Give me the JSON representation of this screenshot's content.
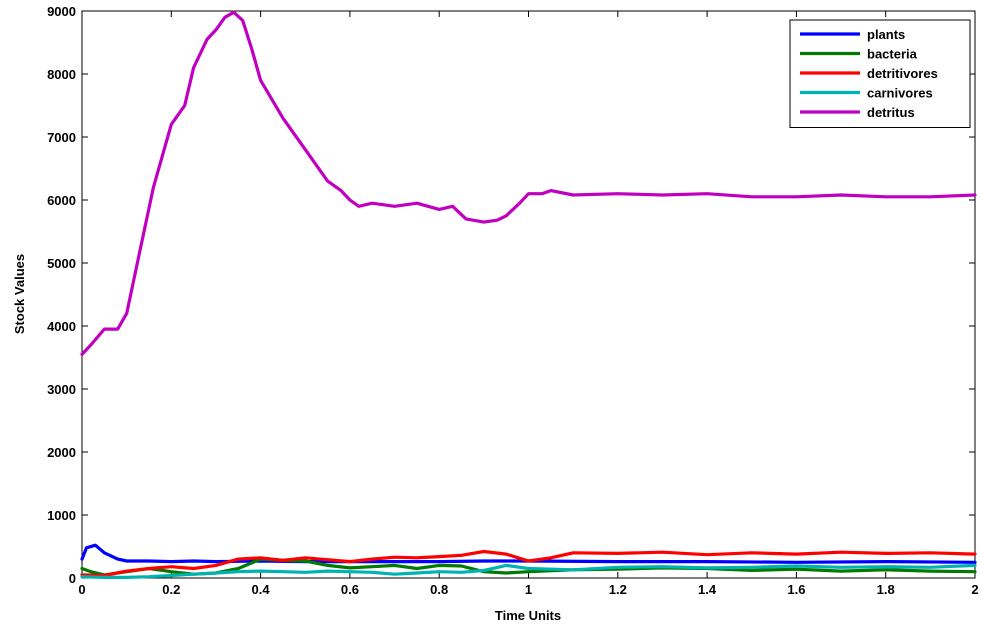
{
  "chart_data": {
    "type": "line",
    "title": "",
    "xlabel": "Time Units",
    "ylabel": "Stock Values",
    "xlim": [
      0,
      2
    ],
    "ylim": [
      0,
      9000
    ],
    "xticks": [
      0,
      0.2,
      0.4,
      0.6,
      0.8,
      1,
      1.2,
      1.4,
      1.6,
      1.8,
      2
    ],
    "xtick_labels": [
      "0",
      "0.2",
      "0.4",
      "0.6",
      "0.8",
      "1",
      "1.2",
      "1.4",
      "1.6",
      "1.8",
      "2"
    ],
    "yticks": [
      0,
      1000,
      2000,
      3000,
      4000,
      5000,
      6000,
      7000,
      8000,
      9000
    ],
    "ytick_labels": [
      "0",
      "1000",
      "2000",
      "3000",
      "4000",
      "5000",
      "6000",
      "7000",
      "8000",
      "9000"
    ],
    "grid": false,
    "legend_position": "top-right",
    "series": [
      {
        "name": "plants",
        "color": "#0000ff",
        "x": [
          0,
          0.01,
          0.03,
          0.05,
          0.08,
          0.1,
          0.15,
          0.2,
          0.25,
          0.3,
          0.4,
          0.5,
          0.6,
          0.7,
          0.8,
          0.9,
          1.0,
          1.2,
          1.4,
          1.6,
          1.8,
          2.0
        ],
        "y": [
          300,
          480,
          520,
          400,
          300,
          270,
          270,
          260,
          270,
          260,
          270,
          260,
          260,
          260,
          260,
          270,
          270,
          260,
          260,
          250,
          260,
          250
        ]
      },
      {
        "name": "bacteria",
        "color": "#007a00",
        "x": [
          0,
          0.02,
          0.05,
          0.1,
          0.15,
          0.2,
          0.25,
          0.3,
          0.35,
          0.4,
          0.45,
          0.5,
          0.55,
          0.6,
          0.65,
          0.7,
          0.75,
          0.8,
          0.85,
          0.9,
          0.95,
          1.0,
          1.1,
          1.2,
          1.3,
          1.4,
          1.5,
          1.6,
          1.7,
          1.8,
          1.9,
          2.0
        ],
        "y": [
          150,
          100,
          50,
          100,
          150,
          100,
          60,
          80,
          150,
          300,
          280,
          270,
          200,
          160,
          180,
          200,
          150,
          200,
          190,
          100,
          80,
          100,
          130,
          140,
          160,
          150,
          120,
          140,
          110,
          130,
          110,
          100
        ]
      },
      {
        "name": "detritivores",
        "color": "#ff0000",
        "x": [
          0,
          0.05,
          0.1,
          0.15,
          0.2,
          0.25,
          0.3,
          0.35,
          0.4,
          0.45,
          0.5,
          0.55,
          0.6,
          0.65,
          0.7,
          0.75,
          0.8,
          0.85,
          0.9,
          0.95,
          1.0,
          1.05,
          1.1,
          1.2,
          1.3,
          1.4,
          1.5,
          1.6,
          1.7,
          1.8,
          1.9,
          2.0
        ],
        "y": [
          50,
          40,
          110,
          150,
          180,
          150,
          200,
          300,
          320,
          280,
          320,
          290,
          260,
          300,
          330,
          320,
          340,
          360,
          420,
          380,
          270,
          320,
          400,
          390,
          410,
          370,
          400,
          380,
          410,
          390,
          400,
          380
        ]
      },
      {
        "name": "carnivores",
        "color": "#00b3b3",
        "x": [
          0,
          0.05,
          0.1,
          0.15,
          0.2,
          0.25,
          0.3,
          0.35,
          0.4,
          0.45,
          0.5,
          0.55,
          0.6,
          0.65,
          0.7,
          0.75,
          0.8,
          0.85,
          0.9,
          0.95,
          1.0,
          1.1,
          1.2,
          1.3,
          1.4,
          1.5,
          1.6,
          1.7,
          1.8,
          1.9,
          2.0
        ],
        "y": [
          20,
          10,
          10,
          20,
          40,
          60,
          80,
          100,
          110,
          100,
          90,
          110,
          100,
          90,
          60,
          80,
          100,
          90,
          120,
          200,
          150,
          130,
          170,
          180,
          160,
          170,
          190,
          170,
          180,
          170,
          200
        ]
      },
      {
        "name": "detritus",
        "color": "#c000c0",
        "x": [
          0,
          0.02,
          0.05,
          0.08,
          0.1,
          0.13,
          0.16,
          0.2,
          0.23,
          0.25,
          0.28,
          0.3,
          0.32,
          0.34,
          0.36,
          0.38,
          0.4,
          0.45,
          0.5,
          0.55,
          0.58,
          0.6,
          0.62,
          0.65,
          0.7,
          0.75,
          0.8,
          0.83,
          0.86,
          0.9,
          0.93,
          0.95,
          0.98,
          1.0,
          1.03,
          1.05,
          1.1,
          1.2,
          1.3,
          1.4,
          1.5,
          1.6,
          1.7,
          1.8,
          1.9,
          2.0
        ],
        "y": [
          3550,
          3700,
          3950,
          3950,
          4200,
          5200,
          6200,
          7200,
          7500,
          8100,
          8550,
          8700,
          8900,
          8980,
          8850,
          8400,
          7900,
          7300,
          6800,
          6300,
          6150,
          6000,
          5900,
          5950,
          5900,
          5950,
          5850,
          5900,
          5700,
          5650,
          5680,
          5750,
          5950,
          6100,
          6100,
          6150,
          6080,
          6100,
          6080,
          6100,
          6050,
          6050,
          6080,
          6050,
          6050,
          6080
        ]
      }
    ]
  }
}
